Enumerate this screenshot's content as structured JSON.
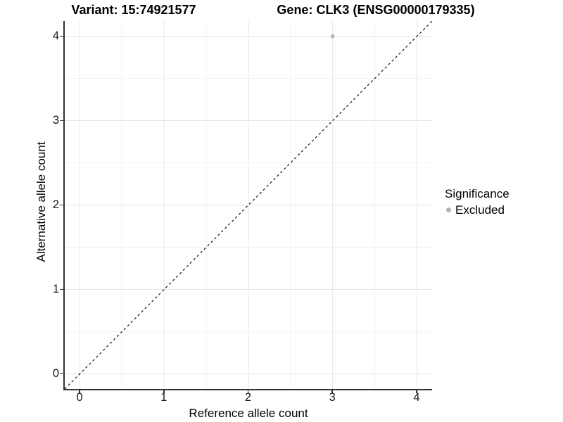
{
  "header": {
    "variant_title": "Variant: 15:74921577",
    "gene_title": "Gene: CLK3 (ENSG00000179335)"
  },
  "chart_data": {
    "type": "scatter",
    "titles": {
      "left": "Variant: 15:74921577",
      "right": "Gene: CLK3 (ENSG00000179335)"
    },
    "xlabel": "Reference allele count",
    "ylabel": "Alternative allele count",
    "xlim": [
      -0.18,
      4.18
    ],
    "ylim": [
      -0.18,
      4.18
    ],
    "xticks": [
      0,
      1,
      2,
      3,
      4
    ],
    "yticks": [
      0,
      1,
      2,
      3,
      4
    ],
    "minor_grid_step": 0.5,
    "grid": "major+minor",
    "series": [
      {
        "name": "Excluded",
        "color": "#b3b3b3",
        "points": [
          {
            "x": 3,
            "y": 4
          }
        ]
      }
    ],
    "reference_line": {
      "equation": "y = x",
      "style": "dashed",
      "color": "#000000"
    },
    "legend": {
      "title": "Significance",
      "position": "right",
      "entries": [
        {
          "label": "Excluded",
          "color": "#b3b3b3"
        }
      ]
    }
  },
  "colors": {
    "axis_line": "#333333",
    "tick_label": "#1a1a1a",
    "grid_major": "#e5e5e5",
    "grid_minor": "#f2f2f2",
    "background": "#ffffff"
  }
}
